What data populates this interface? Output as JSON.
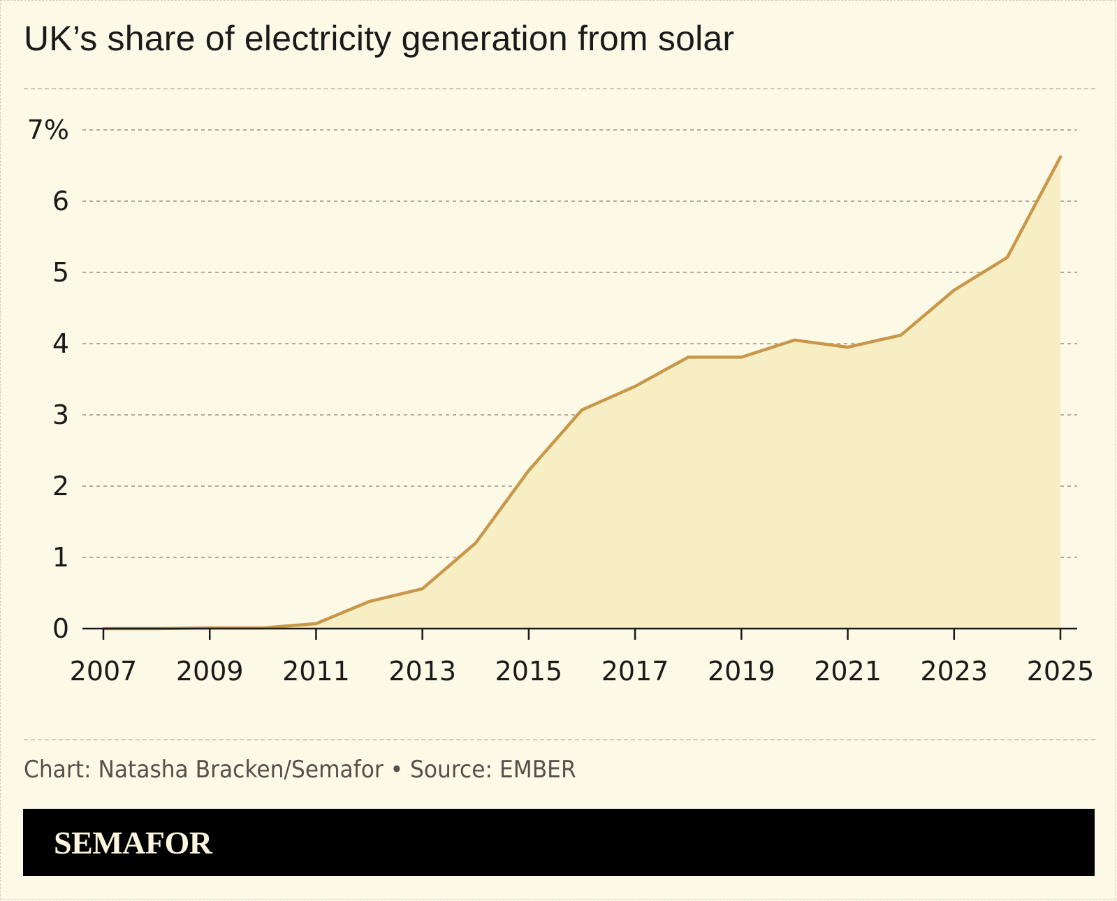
{
  "title": "UK’s share of electricity generation from solar",
  "credit": "Chart: Natasha Bracken/Semafor • Source: EMBER",
  "brand": "SEMAFOR",
  "colors": {
    "background": "#fcf9e6",
    "line": "#c9974a",
    "area": "#f7eec4",
    "grid": "#b3ad98",
    "axis": "#1a1a1a",
    "brand_bar": "#000000"
  },
  "chart_data": {
    "type": "area",
    "title": "UK’s share of electricity generation from solar",
    "xlabel": "",
    "ylabel": "",
    "x": [
      2007,
      2008,
      2009,
      2010,
      2011,
      2012,
      2013,
      2014,
      2015,
      2016,
      2017,
      2018,
      2019,
      2020,
      2021,
      2022,
      2023,
      2024,
      2025
    ],
    "series": [
      {
        "values": [
          0.0,
          0.0,
          0.01,
          0.01,
          0.07,
          0.38,
          0.56,
          1.2,
          2.22,
          3.07,
          3.4,
          3.81,
          3.81,
          4.05,
          3.95,
          4.12,
          4.75,
          5.21,
          6.62
        ]
      }
    ],
    "xlim": [
      2007,
      2025
    ],
    "ylim": [
      0,
      7
    ],
    "x_ticks": [
      "2007",
      "2009",
      "2011",
      "2013",
      "2015",
      "2017",
      "2019",
      "2021",
      "2023",
      "2025"
    ],
    "x_tick_values": [
      2007,
      2009,
      2011,
      2013,
      2015,
      2017,
      2019,
      2021,
      2023,
      2025
    ],
    "y_ticks": [
      "0",
      "1",
      "2",
      "3",
      "4",
      "5",
      "6",
      "7%"
    ],
    "y_tick_values": [
      0,
      1,
      2,
      3,
      4,
      5,
      6,
      7
    ],
    "grid": true,
    "legend": "none"
  }
}
